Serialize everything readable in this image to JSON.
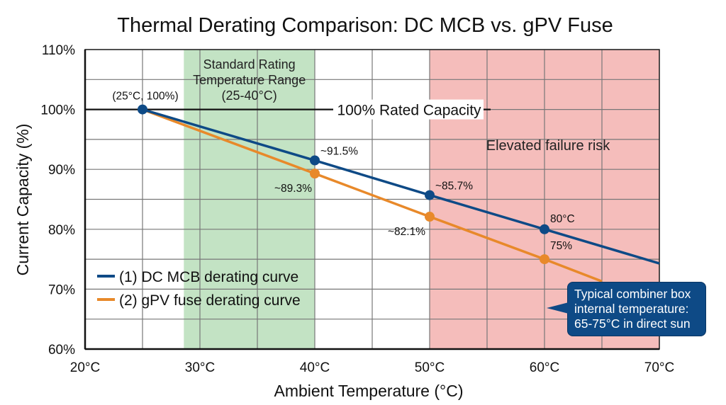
{
  "chart_data": {
    "type": "line",
    "title": "Thermal Derating Comparison: DC MCB vs. gPV Fuse",
    "xlabel": "Ambient Temperature (°C)",
    "ylabel": "Current Capacity (%)",
    "xlim": [
      20,
      70
    ],
    "ylim": [
      60,
      110
    ],
    "x_ticks": [
      20,
      30,
      40,
      50,
      60,
      70
    ],
    "x_tick_labels": [
      "20°C",
      "30°C",
      "40°C",
      "50°C",
      "60°C",
      "70°C"
    ],
    "y_ticks": [
      60,
      70,
      80,
      90,
      100,
      110
    ],
    "y_tick_labels": [
      "60%",
      "70%",
      "80%",
      "90%",
      "100%",
      "110%"
    ],
    "grid": true,
    "grid_step": {
      "x": 5,
      "y": 5
    },
    "legend_position": "lower-left",
    "series": [
      {
        "name": "(1) DC MCB derating curve",
        "color": "#0e4a86",
        "x": [
          25,
          40,
          50,
          60,
          70
        ],
        "y": [
          100,
          91.5,
          85.7,
          80,
          74.3
        ],
        "markers": [
          25,
          40,
          50,
          60
        ]
      },
      {
        "name": "(2) gPV fuse derating curve",
        "color": "#e8892a",
        "x": [
          25,
          40,
          50,
          60,
          65
        ],
        "y": [
          100,
          89.3,
          82.1,
          75,
          71.3
        ],
        "markers": [
          40,
          50,
          60
        ]
      }
    ],
    "reference_line": {
      "y": 100,
      "label": "100% Rated Capacity"
    },
    "bands": [
      {
        "x": [
          28.6,
          40
        ],
        "color": "#c3e3c4",
        "label_lines": [
          "Standard Rating",
          "Temperature Range",
          "(25-40°C)"
        ]
      },
      {
        "x": [
          50,
          70
        ],
        "color": "#f5bdbb",
        "label_lines": [
          "Elevated failure risk"
        ]
      }
    ],
    "annotations": [
      {
        "text": "(25°C, 100%)",
        "x": 25,
        "y": 100
      },
      {
        "text": "~91.5%",
        "x": 40,
        "y": 91.5
      },
      {
        "text": "~89.3%",
        "x": 40,
        "y": 89.3
      },
      {
        "text": "~85.7%",
        "x": 50,
        "y": 85.7
      },
      {
        "text": "~82.1%",
        "x": 50,
        "y": 82.1
      },
      {
        "text": "80°C",
        "x": 60,
        "y": 80
      },
      {
        "text": "75%",
        "x": 60,
        "y": 75
      }
    ],
    "callout": {
      "lines": [
        "Typical combiner box",
        "internal temperature:",
        "65-75°C in direct sun"
      ],
      "color": "#0e4a86"
    }
  }
}
